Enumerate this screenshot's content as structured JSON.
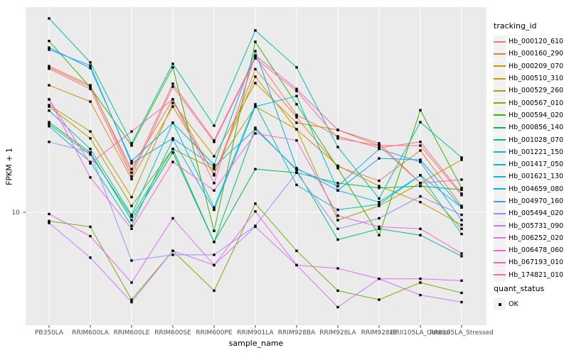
{
  "chart_data": {
    "type": "line",
    "title": "",
    "xlabel": "sample_name",
    "ylabel": "FPKM + 1",
    "y_scale": "log10",
    "ylim": [
      2.6,
      117
    ],
    "y_breaks": [
      10
    ],
    "y_tick_label": "10",
    "grid": true,
    "panel_bg": "#EBEBEB",
    "grid_color": "#FFFFFF",
    "axis_text_color": "#4D4D4D",
    "point_shape": "square",
    "point_color": "#000000",
    "legend_position": "right",
    "legend_title": "tracking_id",
    "categories": [
      "PB350LA",
      "RRIM600LA",
      "RRIM600LE",
      "RRIM600SE",
      "RRIM600PE",
      "RRIM901LA",
      "RRIM928BA",
      "RRIM928LA",
      "RRIM928LE",
      "RRII105LA_Control",
      "RRII105LA_Stressed"
    ],
    "series": [
      {
        "name": "Hb_000120_610",
        "color": "#F8766D",
        "values": [
          57.9,
          46.0,
          16.1,
          46.8,
          23.7,
          64.7,
          32.2,
          24.9,
          21.7,
          23.3,
          12.5
        ]
      },
      {
        "name": "Hb_000160_290",
        "color": "#EA8331",
        "values": [
          57.0,
          45.2,
          16.8,
          38.8,
          15.6,
          55.8,
          31.3,
          17.3,
          14.6,
          21.0,
          10.8
        ]
      },
      {
        "name": "Hb_000209_070",
        "color": "#D89000",
        "values": [
          46.0,
          37.8,
          14.9,
          35.6,
          15.8,
          51.0,
          27.1,
          17.5,
          13.7,
          11.3,
          8.6
        ]
      },
      {
        "name": "Hb_000510_310",
        "color": "#C09B00",
        "values": [
          36.2,
          26.4,
          12.0,
          37.2,
          19.6,
          47.2,
          29.3,
          26.9,
          22.3,
          14.2,
          18.8
        ]
      },
      {
        "name": "Hb_000529_260",
        "color": "#A3A500",
        "values": [
          35.6,
          24.3,
          10.8,
          21.4,
          16.8,
          35.6,
          27.1,
          9.1,
          10.8,
          14.2,
          8.2
        ]
      },
      {
        "name": "Hb_000567_010",
        "color": "#7CAE00",
        "values": [
          9.0,
          8.4,
          3.5,
          6.3,
          3.9,
          11.1,
          6.3,
          3.9,
          3.5,
          4.3,
          3.8
        ]
      },
      {
        "name": "Hb_000594_020",
        "color": "#39B600",
        "values": [
          78.2,
          44.8,
          22.3,
          57.0,
          8.0,
          77.5,
          36.6,
          17.0,
          7.6,
          34.1,
          13.4
        ]
      },
      {
        "name": "Hb_000856_140",
        "color": "#00BB4E",
        "values": [
          29.5,
          20.5,
          9.1,
          20.5,
          7.0,
          16.8,
          16.1,
          14.2,
          13.4,
          13.7,
          13.1
        ]
      },
      {
        "name": "Hb_001028_070",
        "color": "#00BF7D",
        "values": [
          28.8,
          20.0,
          9.5,
          21.4,
          7.0,
          27.6,
          16.6,
          7.2,
          8.2,
          7.6,
          5.9
        ]
      },
      {
        "name": "Hb_001221_150",
        "color": "#00C1A3",
        "values": [
          102.6,
          60.5,
          22.9,
          59.5,
          28.3,
          88.8,
          57.0,
          21.9,
          11.8,
          29.5,
          19.3
        ]
      },
      {
        "name": "Hb_001417_050",
        "color": "#00BFC4",
        "values": [
          33.9,
          21.4,
          9.7,
          29.3,
          10.6,
          36.6,
          13.9,
          10.3,
          11.0,
          15.6,
          7.7
        ]
      },
      {
        "name": "Hb_001621_130",
        "color": "#00BAE0",
        "values": [
          28.1,
          18.3,
          8.5,
          23.9,
          10.3,
          35.6,
          40.4,
          13.0,
          11.3,
          15.6,
          10.6
        ]
      },
      {
        "name": "Hb_004659_080",
        "color": "#00B0F6",
        "values": [
          72.3,
          56.5,
          18.5,
          29.3,
          17.7,
          69.3,
          17.0,
          13.0,
          19.1,
          18.8,
          10.6
        ]
      },
      {
        "name": "Hb_004970_160",
        "color": "#35A2FF",
        "values": [
          70.5,
          58.3,
          18.0,
          24.3,
          17.3,
          27.1,
          16.8,
          13.7,
          21.4,
          18.3,
          9.1
        ]
      },
      {
        "name": "Hb_005494_020",
        "color": "#9590FF",
        "values": [
          23.3,
          20.5,
          5.6,
          6.0,
          6.0,
          8.5,
          16.1,
          8.2,
          9.3,
          12.1,
          9.7
        ]
      },
      {
        "name": "Hb_005731_090",
        "color": "#C77CFF",
        "values": [
          8.8,
          5.8,
          3.4,
          6.3,
          5.3,
          8.4,
          5.3,
          3.2,
          4.5,
          3.7,
          3.4
        ]
      },
      {
        "name": "Hb_006252_020",
        "color": "#E76BF3",
        "values": [
          9.8,
          7.5,
          4.3,
          9.3,
          5.3,
          10.1,
          5.3,
          5.1,
          4.5,
          4.5,
          4.4
        ]
      },
      {
        "name": "Hb_006478_060",
        "color": "#FA62DB",
        "values": [
          38.8,
          15.2,
          8.2,
          18.3,
          13.0,
          25.8,
          23.7,
          9.6,
          8.4,
          8.2,
          6.1
        ]
      },
      {
        "name": "Hb_067193_010",
        "color": "#FF62BC",
        "values": [
          38.8,
          18.0,
          26.4,
          38.8,
          14.2,
          65.8,
          44.0,
          26.9,
          22.9,
          14.2,
          14.8
        ]
      },
      {
        "name": "Hb_174821_010",
        "color": "#FF6A98",
        "values": [
          56.1,
          44.0,
          15.4,
          45.2,
          23.3,
          63.6,
          42.9,
          24.3,
          22.3,
          22.3,
          12.3
        ]
      }
    ],
    "quant_legend": {
      "title": "quant_status",
      "items": [
        {
          "label": "OK"
        }
      ]
    }
  }
}
